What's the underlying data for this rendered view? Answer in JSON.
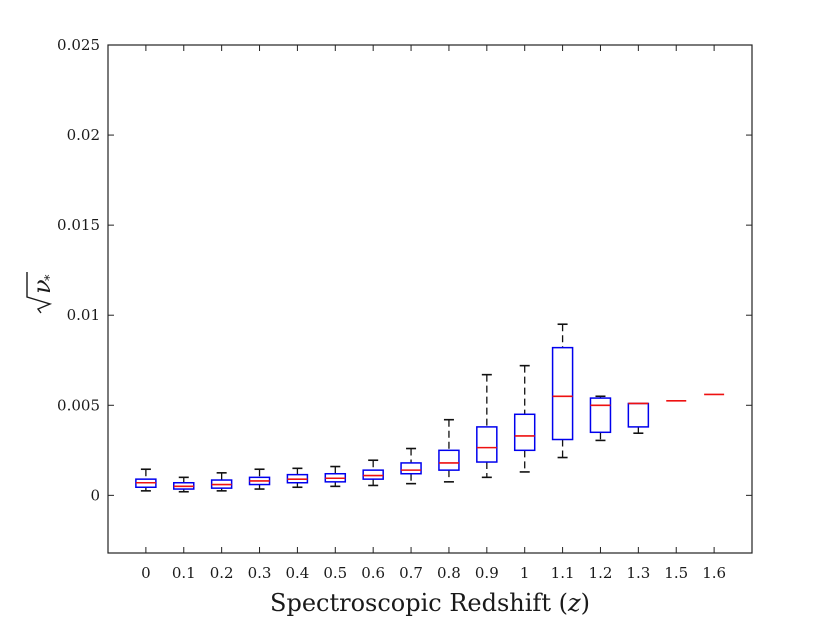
{
  "chart_data": {
    "type": "box",
    "xlabel_text": "Spectroscopic Redshift (",
    "xlabel_var": "z",
    "xlabel_close": ")",
    "ylabel_symbol": "ν",
    "ylabel_sub": "*",
    "ylim": [
      -0.0032,
      0.025
    ],
    "yticks": [
      0,
      0.005,
      0.01,
      0.015,
      0.02,
      0.025
    ],
    "ytick_labels": [
      "0",
      "0.005",
      "0.01",
      "0.015",
      "0.02",
      "0.025"
    ],
    "categories": [
      "0",
      "0.1",
      "0.2",
      "0.3",
      "0.4",
      "0.5",
      "0.6",
      "0.7",
      "0.8",
      "0.9",
      "1",
      "1.1",
      "1.2",
      "1.3",
      "1.5",
      "1.6"
    ],
    "boxes": [
      {
        "whisker_low": 0.00025,
        "q1": 0.00045,
        "median": 0.0007,
        "q3": 0.0009,
        "whisker_high": 0.00145
      },
      {
        "whisker_low": 0.0002,
        "q1": 0.00035,
        "median": 0.0005,
        "q3": 0.0007,
        "whisker_high": 0.001
      },
      {
        "whisker_low": 0.00025,
        "q1": 0.0004,
        "median": 0.0006,
        "q3": 0.00085,
        "whisker_high": 0.00125
      },
      {
        "whisker_low": 0.00035,
        "q1": 0.0006,
        "median": 0.0008,
        "q3": 0.001,
        "whisker_high": 0.00145
      },
      {
        "whisker_low": 0.00045,
        "q1": 0.0007,
        "median": 0.0009,
        "q3": 0.00115,
        "whisker_high": 0.0015
      },
      {
        "whisker_low": 0.0005,
        "q1": 0.00075,
        "median": 0.00095,
        "q3": 0.0012,
        "whisker_high": 0.0016
      },
      {
        "whisker_low": 0.00055,
        "q1": 0.0009,
        "median": 0.0011,
        "q3": 0.0014,
        "whisker_high": 0.00195
      },
      {
        "whisker_low": 0.00065,
        "q1": 0.0012,
        "median": 0.0014,
        "q3": 0.0018,
        "whisker_high": 0.0026
      },
      {
        "whisker_low": 0.00075,
        "q1": 0.0014,
        "median": 0.0018,
        "q3": 0.0025,
        "whisker_high": 0.0042
      },
      {
        "whisker_low": 0.001,
        "q1": 0.00185,
        "median": 0.00265,
        "q3": 0.0038,
        "whisker_high": 0.0067
      },
      {
        "whisker_low": 0.0013,
        "q1": 0.0025,
        "median": 0.0033,
        "q3": 0.0045,
        "whisker_high": 0.0072
      },
      {
        "whisker_low": 0.0021,
        "q1": 0.0031,
        "median": 0.0055,
        "q3": 0.0082,
        "whisker_high": 0.0095
      },
      {
        "whisker_low": 0.00305,
        "q1": 0.0035,
        "median": 0.005,
        "q3": 0.0054,
        "whisker_high": 0.0055
      },
      {
        "whisker_low": 0.00345,
        "q1": 0.0038,
        "median": 0.0051,
        "q3": 0.0051,
        "whisker_high": 0.0051
      },
      {
        "whisker_low": 0.00525,
        "q1": 0.00525,
        "median": 0.00525,
        "q3": 0.00525,
        "whisker_high": 0.00525
      },
      {
        "whisker_low": 0.0056,
        "q1": 0.0056,
        "median": 0.0056,
        "q3": 0.0056,
        "whisker_high": 0.0056
      }
    ],
    "grid": false,
    "colors": {
      "box": "#0000ee",
      "median": "#ee1111",
      "whisker": "#111111"
    }
  }
}
